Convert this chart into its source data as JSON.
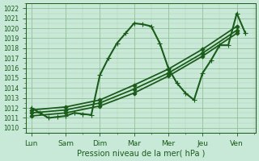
{
  "bg_color": "#c8e8d8",
  "grid_major_color": "#8ab88a",
  "grid_minor_color": "#b0d4b0",
  "line_color": "#1a5c1a",
  "xlabel": "Pression niveau de la mer( hPa )",
  "xtick_labels": [
    "Lun",
    "Sam",
    "Dim",
    "Mar",
    "Mer",
    "Jeu",
    "Ven"
  ],
  "xtick_positions": [
    0,
    1,
    2,
    3,
    4,
    5,
    6
  ],
  "ylim": [
    1009.5,
    1022.5
  ],
  "yticks": [
    1010,
    1011,
    1012,
    1013,
    1014,
    1015,
    1016,
    1017,
    1018,
    1019,
    1020,
    1021,
    1022
  ],
  "xlim": [
    -0.15,
    6.55
  ],
  "series": [
    {
      "x": [
        0,
        0.25,
        0.5,
        0.75,
        1.0,
        1.25,
        1.5,
        1.75,
        2.0,
        2.25,
        2.5,
        2.75,
        3.0,
        3.25,
        3.5,
        3.75,
        4.0,
        4.25,
        4.5,
        4.75,
        5.0,
        5.25,
        5.5,
        5.75,
        6.0,
        6.25
      ],
      "y": [
        1012,
        1011.5,
        1011,
        1011.1,
        1011.2,
        1011.5,
        1011.4,
        1011.3,
        1015.3,
        1017.0,
        1018.5,
        1019.5,
        1020.5,
        1020.4,
        1020.2,
        1018.5,
        1016.0,
        1014.5,
        1013.5,
        1012.8,
        1015.5,
        1016.8,
        1018.3,
        1018.3,
        1021.5,
        1019.5
      ],
      "lw": 1.5,
      "marker": "+",
      "ms": 4,
      "linestyle": "-",
      "zorder": 4
    },
    {
      "x": [
        0,
        1,
        2,
        3,
        4,
        5,
        6
      ],
      "y": [
        1011.2,
        1011.5,
        1012.2,
        1013.5,
        1015.2,
        1017.2,
        1019.5
      ],
      "lw": 1.3,
      "marker": "D",
      "ms": 2.5,
      "linestyle": "-",
      "zorder": 3
    },
    {
      "x": [
        0,
        1,
        2,
        3,
        4,
        5,
        6
      ],
      "y": [
        1011.5,
        1011.8,
        1012.5,
        1013.9,
        1015.5,
        1017.5,
        1019.8
      ],
      "lw": 1.3,
      "marker": "D",
      "ms": 2.5,
      "linestyle": "-",
      "zorder": 3
    },
    {
      "x": [
        0,
        1,
        2,
        3,
        4,
        5,
        6
      ],
      "y": [
        1011.8,
        1012.1,
        1012.8,
        1014.3,
        1015.9,
        1017.9,
        1020.2
      ],
      "lw": 1.3,
      "marker": "D",
      "ms": 2.5,
      "linestyle": "-",
      "zorder": 3
    }
  ]
}
